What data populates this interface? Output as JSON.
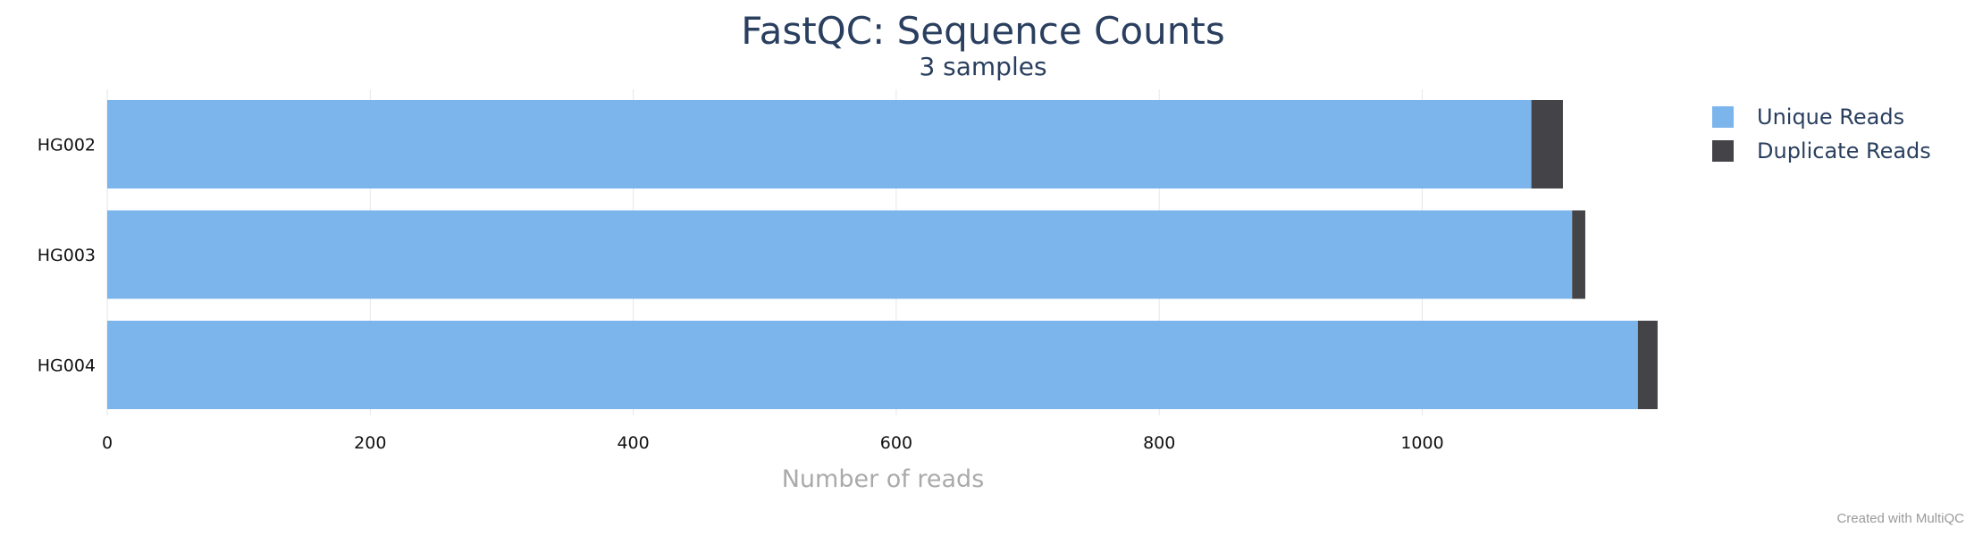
{
  "chart_data": {
    "type": "bar",
    "orientation": "horizontal",
    "stacked": true,
    "title": "FastQC: Sequence Counts",
    "subtitle": "3 samples",
    "categories": [
      "HG002",
      "HG003",
      "HG004"
    ],
    "series": [
      {
        "name": "Unique Reads",
        "color": "#7cb4ec",
        "values": [
          1083,
          1114,
          1164
        ]
      },
      {
        "name": "Duplicate Reads",
        "color": "#434348",
        "values": [
          24,
          10,
          15
        ]
      }
    ],
    "xlabel": "Number of reads",
    "ylabel": "",
    "xlim": [
      0,
      1250
    ],
    "xticks": [
      0,
      200,
      400,
      600,
      800,
      1000
    ],
    "grid": true,
    "legend_position": "top-right"
  },
  "credit": "Created with MultiQC"
}
